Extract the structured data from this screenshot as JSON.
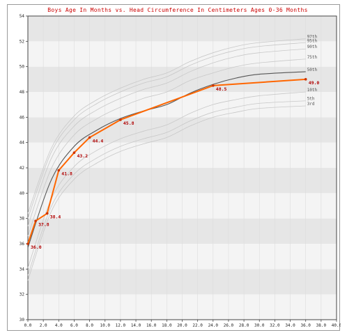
{
  "chart_data": {
    "type": "line",
    "title": "Boys Age In Months vs. Head Circumference In Centimeters Ages 0-36 Months",
    "xlabel": "",
    "ylabel": "",
    "xlim": [
      0,
      40
    ],
    "ylim": [
      30,
      54
    ],
    "x_ticks": [
      "0.0",
      "2.0",
      "4.0",
      "6.0",
      "8.0",
      "10.0",
      "12.0",
      "14.0",
      "16.0",
      "18.0",
      "20.0",
      "22.0",
      "24.0",
      "26.0",
      "28.0",
      "30.0",
      "32.0",
      "34.0",
      "36.0",
      "38.0",
      "40.0"
    ],
    "y_ticks": [
      "30",
      "32",
      "34",
      "36",
      "38",
      "40",
      "42",
      "44",
      "46",
      "48",
      "50",
      "52",
      "54"
    ],
    "grid": true,
    "percentiles": [
      {
        "name": "97th",
        "values": [
          38.4,
          43.5,
          46.1,
          47.4,
          48.3,
          49.0,
          49.5,
          50.4,
          51.1,
          51.6,
          51.9,
          52.2
        ]
      },
      {
        "name": "95th",
        "values": [
          38.0,
          43.2,
          45.8,
          47.1,
          48.0,
          48.7,
          49.2,
          50.1,
          50.8,
          51.3,
          51.6,
          51.9
        ]
      },
      {
        "name": "90th",
        "values": [
          37.4,
          42.7,
          45.3,
          46.6,
          47.5,
          48.2,
          48.7,
          49.6,
          50.3,
          50.8,
          51.1,
          51.4
        ]
      },
      {
        "name": "75th",
        "values": [
          36.6,
          41.9,
          44.6,
          45.9,
          46.8,
          47.5,
          48.0,
          48.9,
          49.5,
          50.0,
          50.3,
          50.6
        ]
      },
      {
        "name": "50th",
        "values": [
          35.7,
          41.0,
          43.7,
          45.0,
          45.9,
          46.5,
          47.0,
          47.9,
          48.6,
          49.1,
          49.4,
          49.6
        ]
      },
      {
        "name": "10th",
        "values": [
          34.1,
          39.5,
          42.1,
          43.4,
          44.3,
          44.9,
          45.4,
          46.3,
          47.0,
          47.4,
          47.7,
          48.0
        ]
      },
      {
        "name": "5th",
        "values": [
          33.5,
          38.9,
          41.5,
          42.8,
          43.7,
          44.3,
          44.8,
          45.7,
          46.4,
          46.8,
          47.1,
          47.3
        ]
      },
      {
        "name": "3rd",
        "values": [
          33.1,
          38.5,
          41.1,
          42.4,
          43.3,
          43.9,
          44.4,
          45.3,
          46.0,
          46.4,
          46.7,
          46.9
        ]
      }
    ],
    "percentile_x": [
      0,
      3,
      6,
      9,
      12,
      15,
      18,
      21,
      24,
      27,
      30,
      36
    ],
    "series": [
      {
        "x": [
          0,
          1,
          2.5,
          4,
          6,
          8,
          12,
          24,
          36
        ],
        "values": [
          36.0,
          37.8,
          38.4,
          41.8,
          43.2,
          44.4,
          45.8,
          48.5,
          49.0
        ],
        "labels": [
          "36.0",
          "37.8",
          "38.4",
          "41.8",
          "43.2",
          "44.4",
          "45.8",
          "48.5",
          "49.0"
        ]
      }
    ],
    "colors": {
      "patient": "#ff6600",
      "median": "#555555",
      "percentile": "#c8c8c8",
      "band_dark": "#e6e6e6",
      "band_light": "#f4f4f4"
    }
  }
}
